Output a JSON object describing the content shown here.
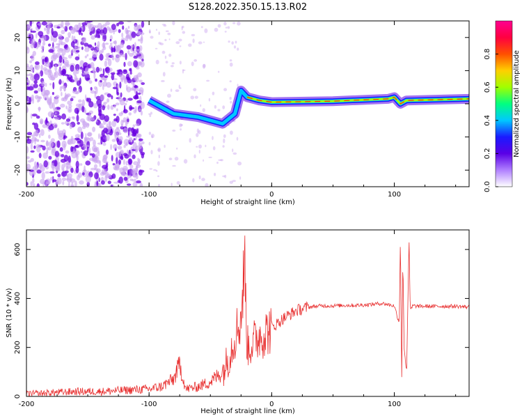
{
  "title": "S128.2022.350.15.13.R02",
  "colors": {
    "background": "#ffffff",
    "axis": "#000000",
    "snr_line": "#e83030",
    "speckle": "#c9a3f0",
    "speckle_dark": "#6a00e0"
  },
  "chart_data": [
    {
      "type": "heatmap",
      "name": "spectrogram",
      "xlabel": "Height of straight line (km)",
      "ylabel": "Frequency (Hz)",
      "xlim": [
        -200,
        161
      ],
      "ylim": [
        -25,
        25
      ],
      "xticks": [
        -200,
        -100,
        0,
        100
      ],
      "xtick_labels": [
        "-200",
        "-100",
        "0",
        "100"
      ],
      "yticks": [
        -20,
        -10,
        0,
        10,
        20
      ],
      "ytick_labels": [
        "-20",
        "-10",
        "0",
        "10",
        "20"
      ],
      "grid": false,
      "ridge": [
        {
          "x": -100,
          "y": 1
        },
        {
          "x": -80,
          "y": -3
        },
        {
          "x": -60,
          "y": -4
        },
        {
          "x": -40,
          "y": -6
        },
        {
          "x": -30,
          "y": -3
        },
        {
          "x": -25,
          "y": 4
        },
        {
          "x": -20,
          "y": 2
        },
        {
          "x": -10,
          "y": 1
        },
        {
          "x": 0,
          "y": 0.5
        },
        {
          "x": 50,
          "y": 0.8
        },
        {
          "x": 95,
          "y": 1.5
        },
        {
          "x": 100,
          "y": 2
        },
        {
          "x": 105,
          "y": 0
        },
        {
          "x": 110,
          "y": 1
        },
        {
          "x": 161,
          "y": 1.5
        }
      ],
      "colorbar": {
        "label": "Normalized spectral amplitude",
        "range": [
          0,
          1
        ],
        "ticks": [
          0.0,
          0.2,
          0.4,
          0.6,
          0.8
        ],
        "tick_labels": [
          "0.0",
          "0.2",
          "0.4",
          "0.6",
          "0.8"
        ],
        "colors": [
          "#ffffff",
          "#b080ff",
          "#5a00e6",
          "#1a1aff",
          "#00c8ff",
          "#00ff80",
          "#a0ff00",
          "#ffd000",
          "#ff5000",
          "#ff0040",
          "#ff0090"
        ]
      }
    },
    {
      "type": "line",
      "name": "snr",
      "xlabel": "Height of straight line (km)",
      "ylabel": "SNR (10 * v/v)",
      "xlim": [
        -200,
        161
      ],
      "ylim": [
        0,
        680
      ],
      "xticks": [
        -200,
        -100,
        0,
        100
      ],
      "xtick_labels": [
        "-200",
        "-100",
        "0",
        "100"
      ],
      "yticks": [
        0,
        200,
        400,
        600
      ],
      "ytick_labels": [
        "0",
        "200",
        "400",
        "600"
      ],
      "grid": false,
      "series": [
        {
          "x": [
            -200,
            -180,
            -160,
            -140,
            -120,
            -100,
            -90,
            -80,
            -75,
            -70,
            -60,
            -50,
            -40,
            -35,
            -30,
            -25,
            -22,
            -20,
            -15,
            -10,
            -5,
            0,
            5,
            10,
            20,
            30,
            40,
            50,
            60,
            70,
            80,
            90,
            100,
            104,
            105,
            106,
            107,
            108,
            110,
            112,
            113,
            115,
            120,
            130,
            140,
            150,
            161
          ],
          "y": [
            10,
            15,
            20,
            20,
            25,
            30,
            40,
            70,
            130,
            30,
            40,
            60,
            100,
            160,
            250,
            320,
            550,
            200,
            220,
            250,
            260,
            280,
            300,
            320,
            350,
            365,
            370,
            370,
            372,
            372,
            375,
            380,
            370,
            300,
            670,
            50,
            580,
            200,
            100,
            640,
            350,
            370,
            368,
            368,
            368,
            368,
            365
          ]
        }
      ]
    }
  ]
}
